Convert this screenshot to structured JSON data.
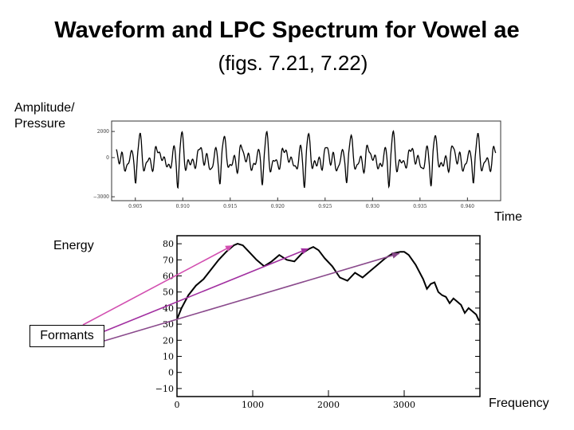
{
  "slide": {
    "title": "Waveform and LPC Spectrum for Vowel ae",
    "subtitle": "(figs. 7.21, 7.22)"
  },
  "labels": {
    "amplitude_line1": "Amplitude/",
    "amplitude_line2": "Pressure",
    "time": "Time",
    "energy": "Energy",
    "frequency": "Frequency",
    "formants": "Formants"
  },
  "waveform": {
    "y_ticks": [
      "2000",
      "0",
      "−3000"
    ],
    "x_ticks": [
      "0.905",
      "0.910",
      "0.915",
      "0.920",
      "0.925",
      "0.930",
      "0.935",
      "0.940"
    ],
    "x_range": [
      0.9025,
      0.9435
    ],
    "y_range": [
      -3300,
      2800
    ]
  },
  "spectrum": {
    "y_ticks": [
      "80",
      "70",
      "60",
      "50",
      "40",
      "30",
      "20",
      "10",
      "0",
      "−10"
    ],
    "x_ticks": [
      "0",
      "1000",
      "2000",
      "3000"
    ],
    "x_range": [
      0,
      4000
    ],
    "y_range": [
      -15,
      85
    ],
    "formant_peaks": [
      {
        "freq": 800,
        "db": 80
      },
      {
        "freq": 1800,
        "db": 78
      },
      {
        "freq": 3000,
        "db": 75
      }
    ]
  },
  "colors": {
    "arrow1": "#d24fb0",
    "arrow2": "#a12fa0",
    "arrow3": "#8a4a8c"
  }
}
